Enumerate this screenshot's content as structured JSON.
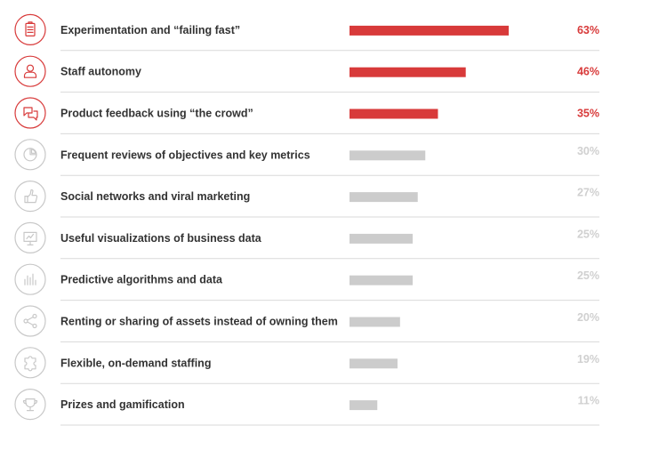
{
  "chart_data": {
    "type": "bar",
    "orientation": "horizontal",
    "categories": [
      "Experimentation and “failing fast”",
      "Staff autonomy",
      "Product feedback using “the crowd”",
      "Frequent reviews of objectives and key metrics",
      "Social networks and viral marketing",
      "Useful visualizations of business data",
      "Predictive algorithms and data",
      "Renting or sharing of assets instead of owning them",
      "Flexible, on-demand staffing",
      "Prizes and gamification"
    ],
    "values": [
      63,
      46,
      35,
      30,
      27,
      25,
      25,
      20,
      19,
      11
    ],
    "value_labels": [
      "63%",
      "46%",
      "35%",
      "30%",
      "27%",
      "25%",
      "25%",
      "20%",
      "19%",
      "11%"
    ],
    "highlighted": [
      true,
      true,
      true,
      false,
      false,
      false,
      false,
      false,
      false,
      false
    ],
    "icons": [
      "clipboard-list-icon",
      "person-icon",
      "chat-bubbles-icon",
      "pie-chart-icon",
      "thumbs-up-icon",
      "presentation-board-icon",
      "bar-lines-icon",
      "share-icon",
      "puzzle-piece-icon",
      "trophy-icon"
    ],
    "colors": {
      "highlight": "#d83a3a",
      "muted_bar": "#cccccc",
      "muted_text": "#d0d0d0",
      "muted_icon": "#c8c8c8",
      "label_text": "#333333"
    },
    "xlim": [
      0,
      100
    ],
    "grid": false,
    "legend": "none"
  }
}
